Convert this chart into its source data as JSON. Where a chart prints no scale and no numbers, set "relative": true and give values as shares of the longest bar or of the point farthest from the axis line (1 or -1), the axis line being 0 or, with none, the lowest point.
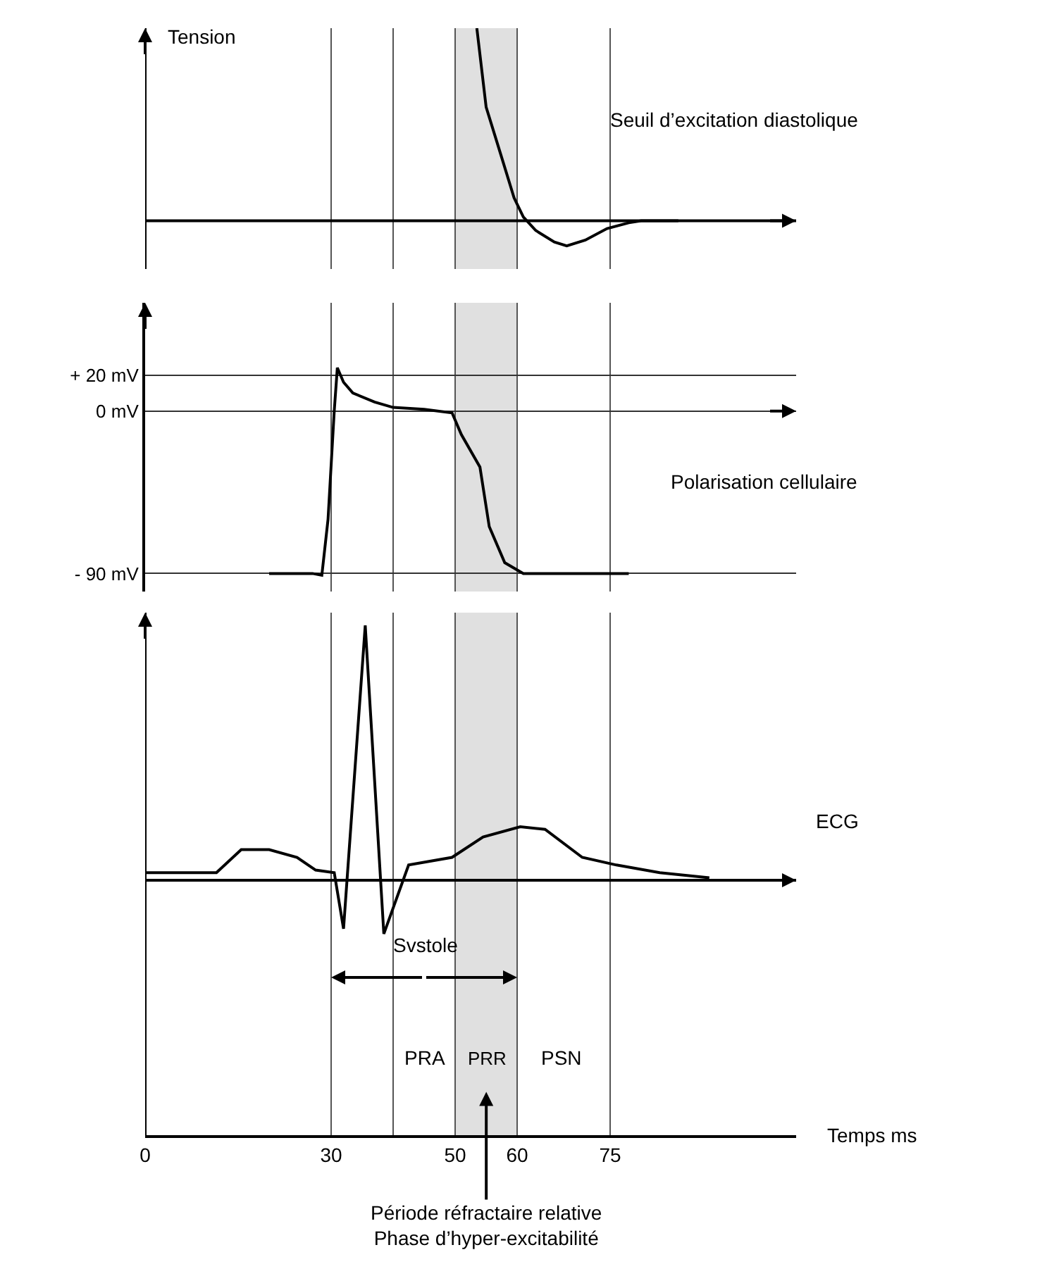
{
  "chart_data": [
    {
      "type": "line",
      "ylabel": "Tension",
      "relative": true,
      "xlim": [
        0,
        105
      ],
      "tick_labels": false,
      "annotations": [
        "Seuil d’excitation diastolique"
      ],
      "ref_lines": [
        {
          "axis": "x",
          "value": 30,
          "color": "#555555"
        },
        {
          "axis": "x",
          "value": 40,
          "color": "#555555"
        },
        {
          "axis": "x",
          "value": 50,
          "color": "#555555"
        },
        {
          "axis": "x",
          "value": 60,
          "color": "#555555"
        },
        {
          "axis": "x",
          "value": 75,
          "color": "#555555"
        }
      ],
      "bands": [
        {
          "axis": "x",
          "from": 50,
          "to": 60,
          "color": "#e0e0e0"
        }
      ],
      "series": [
        {
          "color": "#000000",
          "x": [
            53.5,
            55,
            57.5,
            59.5,
            61,
            63,
            66,
            68,
            71,
            74.5,
            78,
            80,
            86
          ],
          "values": [
            1,
            0.59,
            0.33,
            0.12,
            0.02,
            -0.05,
            -0.11,
            -0.13,
            -0.1,
            -0.04,
            -0.01,
            0,
            0
          ]
        }
      ]
    },
    {
      "type": "line",
      "xlim": [
        0,
        105
      ],
      "ylim": [
        -100,
        60
      ],
      "yticks": [
        {
          "value": 20,
          "label": "+ 20 mV"
        },
        {
          "value": 0,
          "label": "0 mV"
        },
        {
          "value": -90,
          "label": "- 90 mV"
        }
      ],
      "tick_labels": "y",
      "grid": "y",
      "annotations": [
        "Polarisation cellulaire"
      ],
      "ref_lines": [
        {
          "axis": "x",
          "value": 30,
          "color": "#555555"
        },
        {
          "axis": "x",
          "value": 40,
          "color": "#555555"
        },
        {
          "axis": "x",
          "value": 50,
          "color": "#555555"
        },
        {
          "axis": "x",
          "value": 60,
          "color": "#555555"
        },
        {
          "axis": "x",
          "value": 75,
          "color": "#555555"
        }
      ],
      "bands": [
        {
          "axis": "x",
          "from": 50,
          "to": 60,
          "color": "#e0e0e0"
        }
      ],
      "series": [
        {
          "color": "#000000",
          "x": [
            20,
            27,
            28.5,
            29.5,
            30.5,
            31,
            32,
            33.5,
            37,
            40,
            45,
            49.5,
            51,
            54,
            55.5,
            58,
            61,
            70,
            78
          ],
          "values": [
            -90,
            -90,
            -91,
            -60,
            0,
            24,
            16,
            10,
            5,
            2,
            1,
            -1,
            -13,
            -31,
            -64,
            -84,
            -90,
            -90,
            -90
          ]
        }
      ]
    },
    {
      "type": "line",
      "relative": true,
      "xlabel": "Temps ms",
      "xlim": [
        0,
        105
      ],
      "xticks": [
        0,
        30,
        50,
        60,
        75
      ],
      "tick_labels": "x",
      "annotations": [
        "ECG",
        "Svstole",
        "PRA",
        "PSN",
        "Période réfractaire relative\nPhase d’hyper-excitabilité"
      ],
      "ref_lines": [
        {
          "axis": "x",
          "value": 30,
          "color": "#555555"
        },
        {
          "axis": "x",
          "value": 40,
          "color": "#555555"
        },
        {
          "axis": "x",
          "value": 50,
          "color": "#555555"
        },
        {
          "axis": "x",
          "value": 60,
          "color": "#555555"
        },
        {
          "axis": "x",
          "value": 75,
          "color": "#555555"
        }
      ],
      "bands": [
        {
          "axis": "x",
          "from": 50,
          "to": 60,
          "label": "PRR",
          "color": "#e0e0e0"
        }
      ],
      "series": [
        {
          "color": "#000000",
          "x": [
            0,
            11.5,
            15.5,
            20,
            24.5,
            27.5,
            30.5,
            32,
            35.5,
            38.5,
            42.5,
            49.5,
            54.5,
            60.5,
            64.5,
            70.5,
            76,
            83,
            91
          ],
          "values": [
            0.03,
            0.03,
            0.12,
            0.12,
            0.09,
            0.04,
            0.03,
            -0.19,
            1,
            -0.21,
            0.06,
            0.09,
            0.17,
            0.21,
            0.2,
            0.09,
            0.06,
            0.03,
            0.01
          ]
        }
      ]
    }
  ]
}
